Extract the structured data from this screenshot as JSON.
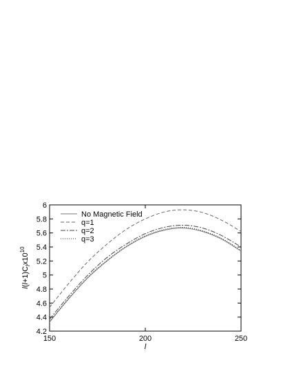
{
  "chart_data": {
    "type": "line",
    "xlabel": "l",
    "ylabel": "l(l+1)C_l x10^10",
    "xlim": [
      150,
      250
    ],
    "ylim": [
      4.2,
      6.0
    ],
    "x_ticks": [
      "150",
      "200",
      "250"
    ],
    "y_ticks": [
      "4.2",
      "4.4",
      "4.6",
      "4.8",
      "5",
      "5.2",
      "5.4",
      "5.6",
      "5.8",
      "6"
    ],
    "grid": false,
    "legend_position": "top-left",
    "x": [
      150,
      160,
      170,
      180,
      190,
      200,
      210,
      220,
      230,
      240,
      250
    ],
    "series": [
      {
        "name": "No Magnetic Field",
        "style": "solid",
        "values": [
          4.33,
          4.66,
          4.96,
          5.2,
          5.4,
          5.55,
          5.64,
          5.67,
          5.62,
          5.51,
          5.34
        ]
      },
      {
        "name": "q=1",
        "style": "dashed",
        "values": [
          4.54,
          4.88,
          5.19,
          5.44,
          5.65,
          5.8,
          5.9,
          5.93,
          5.89,
          5.78,
          5.62
        ]
      },
      {
        "name": "q=2",
        "style": "dashdot",
        "values": [
          4.37,
          4.7,
          5.0,
          5.25,
          5.44,
          5.59,
          5.68,
          5.71,
          5.67,
          5.56,
          5.4
        ]
      },
      {
        "name": "q=3",
        "style": "dotted",
        "values": [
          4.34,
          4.67,
          4.97,
          5.21,
          5.41,
          5.56,
          5.65,
          5.68,
          5.63,
          5.52,
          5.35
        ]
      }
    ]
  }
}
